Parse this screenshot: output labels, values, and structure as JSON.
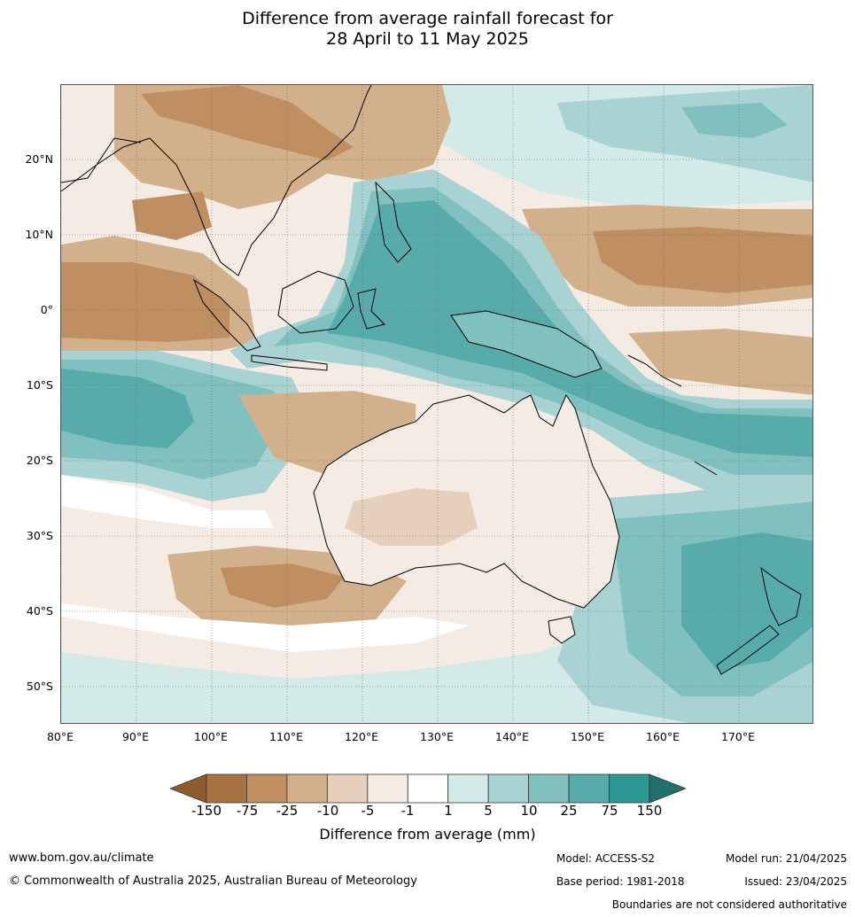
{
  "title_line1": "Difference from average rainfall forecast for",
  "title_line2": "28 April to 11 May 2025",
  "lat_labels": [
    "20°N",
    "10°N",
    "0°",
    "10°S",
    "20°S",
    "30°S",
    "40°S",
    "50°S"
  ],
  "lon_labels": [
    "80°E",
    "90°E",
    "100°E",
    "110°E",
    "120°E",
    "130°E",
    "140°E",
    "150°E",
    "160°E",
    "170°E"
  ],
  "colorbar": {
    "ticks": [
      "-150",
      "-75",
      "-25",
      "-10",
      "-5",
      "-1",
      "1",
      "5",
      "10",
      "25",
      "75",
      "150"
    ],
    "colors": [
      "#a87240",
      "#bf8f62",
      "#d2b08b",
      "#e6d0bc",
      "#f5ebe5",
      "#ffffff",
      "#d4eae8",
      "#a8d3d2",
      "#80c0bf",
      "#58abab",
      "#2e9894"
    ],
    "under_color": "#8f5a2c",
    "over_color": "#22706d",
    "label": "Difference from average (mm)"
  },
  "footer": {
    "website": "www.bom.gov.au/climate",
    "copyright": "© Commonwealth of Australia 2025, Australian Bureau of Meteorology",
    "model": "Model: ACCESS-S2",
    "base_period": "Base period: 1981-2018",
    "model_run": "Model run: 21/04/2025",
    "issued": "Issued: 23/04/2025",
    "boundaries_note": "Boundaries are not considered authoritative"
  }
}
